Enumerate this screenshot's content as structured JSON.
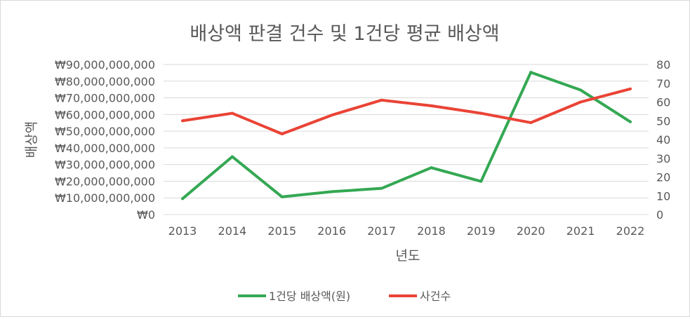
{
  "chart_data": {
    "type": "line",
    "title": "배상액 판결 건수 및 1건당 평균 배상액",
    "xlabel": "년도",
    "ylabel": "배상액",
    "categories": [
      "2013",
      "2014",
      "2015",
      "2016",
      "2017",
      "2018",
      "2019",
      "2020",
      "2021",
      "2022"
    ],
    "y_left": {
      "ylim": [
        0,
        90000000000
      ],
      "ticks": [
        "₩0",
        "₩10,000,000,000",
        "₩20,000,000,000",
        "₩30,000,000,000",
        "₩40,000,000,000",
        "₩50,000,000,000",
        "₩60,000,000,000",
        "₩70,000,000,000",
        "₩80,000,000,000",
        "₩90,000,000,000"
      ]
    },
    "y_right": {
      "ylim": [
        0,
        80
      ],
      "ticks": [
        "0",
        "10",
        "20",
        "30",
        "40",
        "50",
        "60",
        "70",
        "80"
      ]
    },
    "grid": true,
    "legend_position": "bottom",
    "series": [
      {
        "name": "1건당 배상액(원)",
        "axis": "left",
        "color": "#34a853",
        "values": [
          9500000000,
          34700000000,
          10600000000,
          13700000000,
          15700000000,
          28100000000,
          19900000000,
          85300000000,
          74700000000,
          55600000000
        ]
      },
      {
        "name": "사건수",
        "axis": "right",
        "color": "#ea4335",
        "values": [
          50,
          54,
          43,
          53,
          61,
          58,
          54,
          49,
          60,
          67
        ]
      }
    ]
  }
}
